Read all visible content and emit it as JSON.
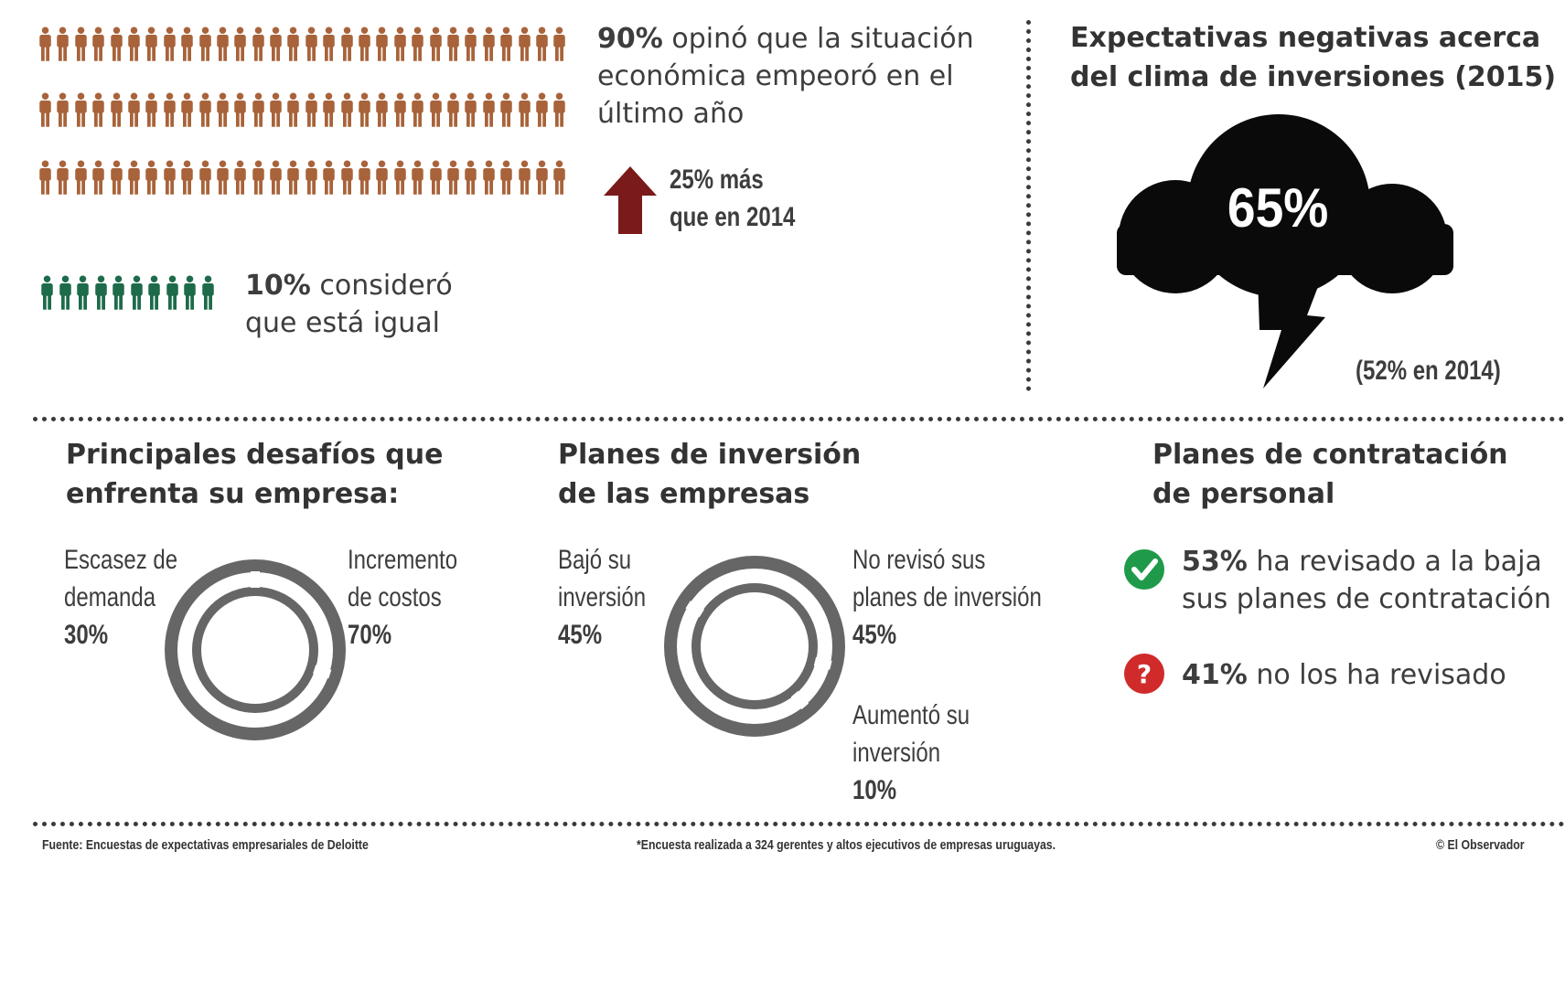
{
  "colors": {
    "pessimist_people": "#a8633a",
    "equal_people": "#1d6b4a",
    "arrow": "#7a1a1a",
    "cloud": "#0a0a0a",
    "donut": "#666666",
    "check": "#1f9a4a",
    "question": "#d02a2a"
  },
  "icons": {
    "person": "person-icon",
    "arrow": "arrow-up-icon",
    "cloud": "cloud-icon",
    "lightning": "lightning-icon",
    "check": "check-icon",
    "question": "question-icon"
  },
  "situation": {
    "worse_pct": "90%",
    "worse_text_1": "opinó que la situación",
    "worse_text_2": "económica empeoró en el",
    "worse_text_3": "último año",
    "delta_line_1": "25% más",
    "delta_line_2": "que en 2014",
    "same_pct": "10%",
    "same_text_1": "consideró",
    "same_text_2": "que está igual"
  },
  "expectations": {
    "title_1": "Expectativas negativas acerca",
    "title_2": "del clima de inversiones (2015)",
    "value": "65%",
    "previous": "(52% en 2014)"
  },
  "challenges": {
    "title_1": "Principales desafíos que",
    "title_2": "enfrenta su empresa:",
    "left_1": "Escasez de",
    "left_2": "demanda",
    "left_pct": "30%",
    "right_1": "Incremento",
    "right_2": "de costos",
    "right_pct": "70%"
  },
  "investment": {
    "title_1": "Planes de inversión",
    "title_2": "de las empresas",
    "left_1": "Bajó su",
    "left_2": "inversión",
    "left_pct": "45%",
    "right_1": "No revisó sus",
    "right_2": "planes de inversión",
    "right_pct": "45%",
    "bottom_1": "Aumentó su",
    "bottom_2": "inversión",
    "bottom_pct": "10%"
  },
  "hiring": {
    "title_1": "Planes de contratación",
    "title_2": "de personal",
    "item1_pct": "53%",
    "item1_text_1": "ha revisado a la baja",
    "item1_text_2": "sus planes de contratación",
    "item2_pct": "41%",
    "item2_text": "no los ha revisado"
  },
  "footer": {
    "source": "Fuente: Encuestas de expectativas empresariales de Deloitte",
    "note": "*Encuesta realizada a 324 gerentes y altos ejecutivos de empresas uruguayas.",
    "credit": "© El Observador"
  },
  "chart_data": [
    {
      "type": "pie",
      "title": "",
      "categories": [
        "Escasez de demanda",
        "Incremento de costos"
      ],
      "values": [
        30,
        70
      ]
    },
    {
      "type": "pie",
      "title": "",
      "categories": [
        "Bajó su inversión",
        "No revisó sus planes de inversión",
        "Aumentó su inversión"
      ],
      "values": [
        45,
        45,
        10
      ]
    },
    {
      "type": "bar",
      "title": "",
      "categories": [
        "Empeoró",
        "Igual"
      ],
      "values": [
        90,
        10
      ]
    }
  ]
}
